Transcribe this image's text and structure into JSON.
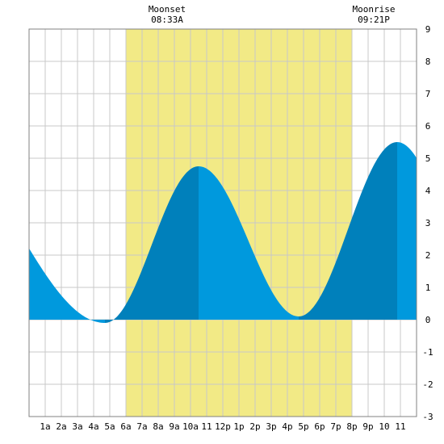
{
  "colors": {
    "background": "#ffffff",
    "daylight": "#f2ea86",
    "grid": "#c8c8c8",
    "frame": "#808080",
    "tide_light": "#0099dd",
    "tide_dark": "#0080bb"
  },
  "annotations": {
    "moonset": {
      "label": "Moonset",
      "time": "08:33A",
      "hour": 8.55
    },
    "moonrise": {
      "label": "Moonrise",
      "time": "09:21P",
      "hour": 21.35
    }
  },
  "chart_data": {
    "type": "area",
    "x_unit": "hour of day",
    "xlim": [
      0,
      24
    ],
    "ylim": [
      -3,
      9
    ],
    "grid": true,
    "x_ticks": [
      {
        "hour": 1,
        "label": "1a"
      },
      {
        "hour": 2,
        "label": "2a"
      },
      {
        "hour": 3,
        "label": "3a"
      },
      {
        "hour": 4,
        "label": "4a"
      },
      {
        "hour": 5,
        "label": "5a"
      },
      {
        "hour": 6,
        "label": "6a"
      },
      {
        "hour": 7,
        "label": "7a"
      },
      {
        "hour": 8,
        "label": "8a"
      },
      {
        "hour": 9,
        "label": "9a"
      },
      {
        "hour": 10,
        "label": "10a"
      },
      {
        "hour": 11,
        "label": "11"
      },
      {
        "hour": 12,
        "label": "12p"
      },
      {
        "hour": 13,
        "label": "1p"
      },
      {
        "hour": 14,
        "label": "2p"
      },
      {
        "hour": 15,
        "label": "3p"
      },
      {
        "hour": 16,
        "label": "4p"
      },
      {
        "hour": 17,
        "label": "5p"
      },
      {
        "hour": 18,
        "label": "6p"
      },
      {
        "hour": 19,
        "label": "7p"
      },
      {
        "hour": 20,
        "label": "8p"
      },
      {
        "hour": 21,
        "label": "9p"
      },
      {
        "hour": 22,
        "label": "10"
      },
      {
        "hour": 23,
        "label": "11"
      }
    ],
    "y_ticks": [
      {
        "value": 9,
        "label": "9"
      },
      {
        "value": 8,
        "label": "8"
      },
      {
        "value": 7,
        "label": "7"
      },
      {
        "value": 6,
        "label": "6"
      },
      {
        "value": 5,
        "label": "5"
      },
      {
        "value": 4,
        "label": "4"
      },
      {
        "value": 3,
        "label": "3"
      },
      {
        "value": 2,
        "label": "2"
      },
      {
        "value": 1,
        "label": "1"
      },
      {
        "value": 0,
        "label": "0"
      },
      {
        "value": -1,
        "label": "-1"
      },
      {
        "value": -2,
        "label": "-2"
      },
      {
        "value": -3,
        "label": "-3"
      }
    ],
    "daylight": {
      "start": 6.0,
      "end": 20.0
    },
    "extremes": [
      {
        "hour": -6.0,
        "value": 5.6
      },
      {
        "hour": 4.7,
        "value": -0.1
      },
      {
        "hour": 10.5,
        "value": 4.75
      },
      {
        "hour": 16.7,
        "value": 0.1
      },
      {
        "hour": 22.8,
        "value": 5.5
      },
      {
        "hour": 29.0,
        "value": 0.0
      }
    ]
  }
}
